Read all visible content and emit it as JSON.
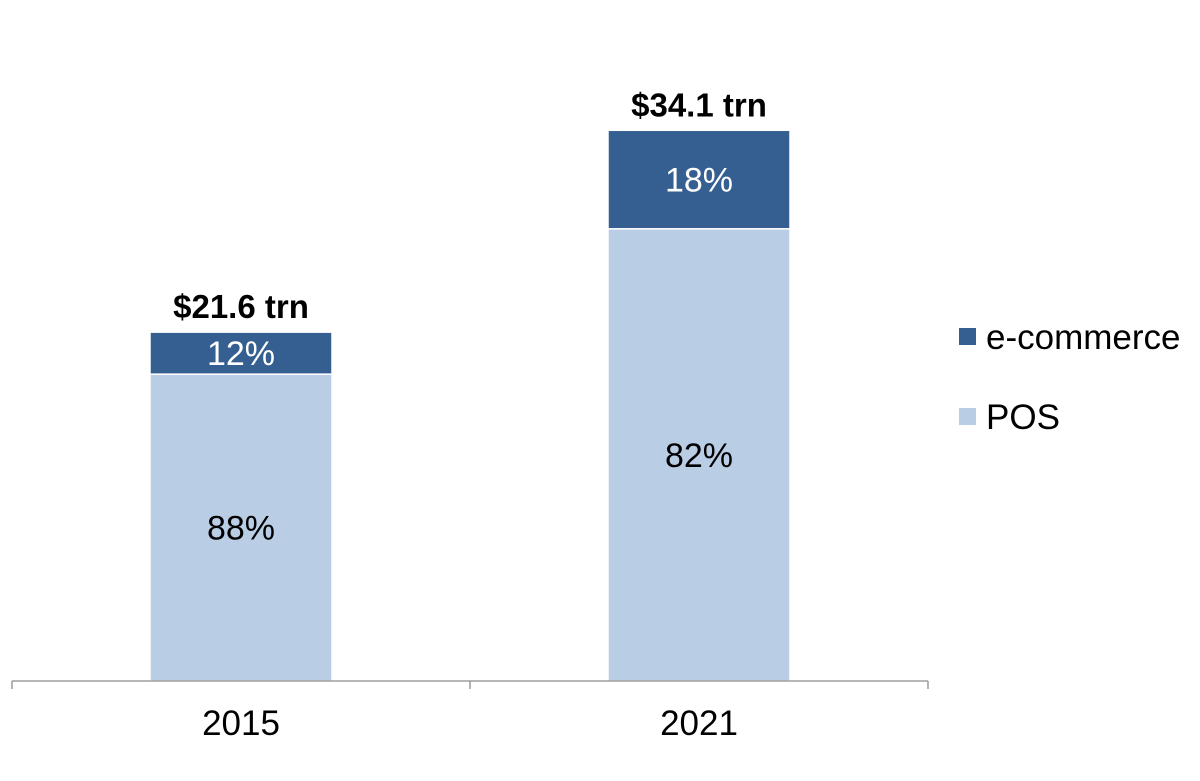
{
  "chart_data": {
    "type": "bar",
    "stacked": true,
    "categories": [
      "2015",
      "2021"
    ],
    "totals": [
      21.6,
      34.1
    ],
    "total_labels": [
      "$21.6 trn",
      "$34.1 trn"
    ],
    "series": [
      {
        "name": "POS",
        "values": [
          19.0,
          28.0
        ],
        "share_labels": [
          "88%",
          "82%"
        ],
        "color": "#b9cde5",
        "label_color": "#000000"
      },
      {
        "name": "e-commerce",
        "values": [
          2.6,
          6.1
        ],
        "share_labels": [
          "12%",
          "18%"
        ],
        "color": "#355f91",
        "label_color": "#ffffff"
      }
    ],
    "ylim": [
      0,
      36
    ],
    "grid": false,
    "legend_position": "right"
  }
}
